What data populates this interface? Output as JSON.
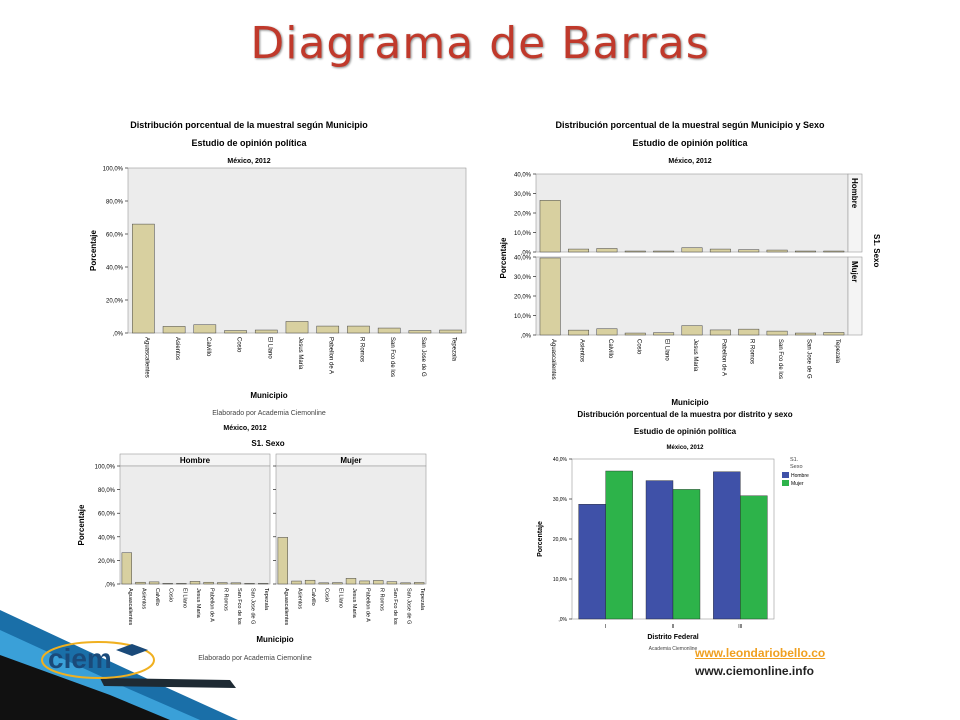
{
  "slide": {
    "title": "Diagrama de Barras",
    "link1": "www.leondariobello.co",
    "link2": "www.ciemonline.info",
    "logo_text": "ciem",
    "colors": {
      "title": "#c0392b",
      "bar": "#d8d0a0",
      "hombre": "#3f51a8",
      "mujer": "#2db34a",
      "plot_bg": "#ececec"
    }
  },
  "municipios": [
    "Aguascalientes",
    "Asientos",
    "Calvillo",
    "Cosio",
    "El Llano",
    "Jesus Maria",
    "Pabellon de A",
    "R Romos",
    "San Fco de los",
    "San Jose de G",
    "Tepezala"
  ],
  "chart_data": [
    {
      "id": "c1",
      "type": "bar",
      "title": "Distribución porcentual de la muestral según Municipio",
      "subtitle": "Estudio de opinión política",
      "subsubtitle": "México, 2012",
      "xlabel": "Municipio",
      "ylabel": "Porcentaje",
      "footer": "Elaborado por Academia Ciemonline",
      "yticks": [
        "100,0%",
        "80,0%",
        "60,0%",
        "40,0%",
        "20,0%",
        ",0%"
      ],
      "ylim": [
        0,
        100
      ],
      "values": [
        66,
        4,
        5,
        1.5,
        1.8,
        7,
        4.2,
        4.2,
        3,
        1.5,
        1.8
      ]
    },
    {
      "id": "c2",
      "type": "bar",
      "title": "Distribución porcentual de la muestral según Municipio y Sexo",
      "subtitle": "Estudio de opinión política",
      "subsubtitle": "México, 2012",
      "xlabel": "Municipio",
      "ylabel": "Porcentaje",
      "facet_label": "S1. Sexo",
      "yticks": [
        "40,0%",
        "30,0%",
        "20,0%",
        "10,0%",
        ",0%"
      ],
      "ylim": [
        0,
        40
      ],
      "series": [
        {
          "name": "Hombre",
          "values": [
            26.5,
            1.5,
            1.8,
            0.5,
            0.5,
            2.2,
            1.5,
            1.2,
            1.0,
            0.5,
            0.5
          ]
        },
        {
          "name": "Mujer",
          "values": [
            39.5,
            2.5,
            3.2,
            1.0,
            1.2,
            4.8,
            2.6,
            3.0,
            2.0,
            1.0,
            1.3
          ]
        }
      ]
    },
    {
      "id": "c3",
      "type": "bar",
      "title": "México, 2012",
      "facet_label": "S1. Sexo",
      "xlabel": "Municipio",
      "ylabel": "Porcentaje",
      "footer": "Elaborado por Academia Ciemonline",
      "yticks": [
        "100,0%",
        "80,0%",
        "60,0%",
        "40,0%",
        "20,0%",
        ",0%"
      ],
      "ylim": [
        0,
        100
      ],
      "series": [
        {
          "name": "Hombre",
          "values": [
            26.5,
            1.5,
            1.8,
            0.5,
            0.5,
            2.2,
            1.5,
            1.2,
            1.0,
            0.5,
            0.5
          ]
        },
        {
          "name": "Mujer",
          "values": [
            39.5,
            2.5,
            3.2,
            1.0,
            1.2,
            4.8,
            2.6,
            3.0,
            2.0,
            1.0,
            1.3
          ]
        }
      ]
    },
    {
      "id": "c4",
      "type": "bar",
      "title": "Distribución porcentual de la muestra por distrito y sexo",
      "subtitle": "Estudio de opinión política",
      "subsubtitle": "México, 2012",
      "xlabel": "Distrito Federal",
      "ylabel": "Porcentaje",
      "footer": "Academia Ciemonline",
      "legend_title": "S1. Sexo",
      "legend_position": "right",
      "categories": [
        "I",
        "II",
        "III"
      ],
      "yticks": [
        "40,0%",
        "30,0%",
        "20,0%",
        "10,0%",
        ",0%"
      ],
      "ylim": [
        0,
        40
      ],
      "series": [
        {
          "name": "Hombre",
          "values": [
            28.7,
            34.6,
            36.8
          ]
        },
        {
          "name": "Mujer",
          "values": [
            37.0,
            32.4,
            30.8
          ]
        }
      ]
    }
  ]
}
